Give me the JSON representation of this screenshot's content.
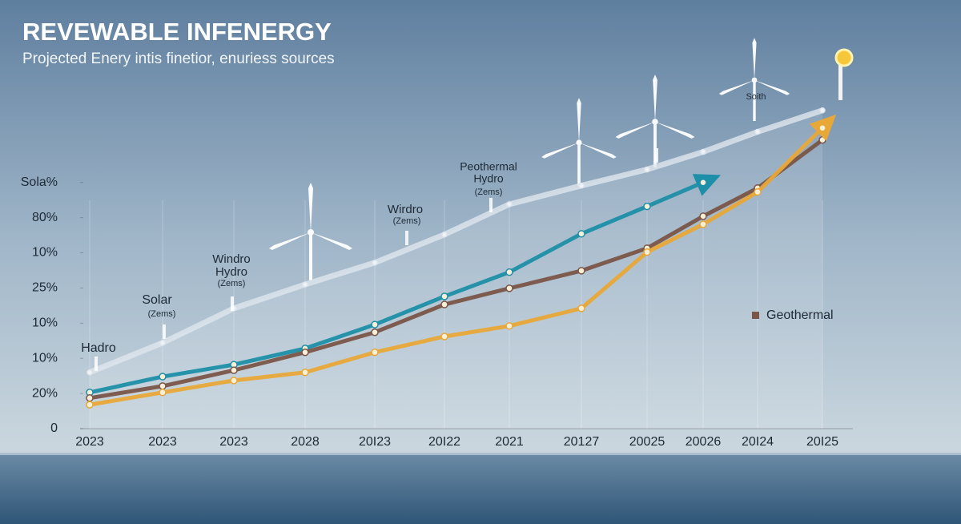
{
  "chart_data": {
    "type": "line",
    "title": "REVEWABLE INFENERGY",
    "subtitle": "Projected Enery intis finetior, enuriess sources",
    "categories": [
      "2023",
      "2023",
      "2023",
      "2028",
      "20I23",
      "20I22",
      "2021",
      "20127",
      "20025",
      "20026",
      "20I24",
      "20I25"
    ],
    "series": [
      {
        "color": "#dfe6ee",
        "values": [
          1.6,
          2.44,
          3.42,
          4.1,
          4.72,
          5.52,
          6.38,
          6.91,
          7.37,
          7.87,
          8.44,
          9.05
        ]
      },
      {
        "color": "#1e8fa8",
        "values": [
          1.03,
          1.48,
          1.82,
          2.28,
          2.96,
          3.76,
          4.45,
          5.54,
          6.32,
          7.0,
          null,
          null
        ]
      },
      {
        "name": "Geothermal",
        "color": "#7a5548",
        "values": [
          0.87,
          1.21,
          1.66,
          2.17,
          2.74,
          3.53,
          3.99,
          4.49,
          5.13,
          6.04,
          6.84,
          8.21
        ]
      },
      {
        "color": "#e8a838",
        "values": [
          0.68,
          1.03,
          1.37,
          1.6,
          2.17,
          2.62,
          2.92,
          3.42,
          5.02,
          5.81,
          6.73,
          8.55
        ]
      }
    ],
    "ylim": [
      0,
      9.5
    ],
    "yticks": [
      0,
      {
        "value": 1,
        "label": "20%"
      },
      {
        "value": 2,
        "label": "10%"
      },
      {
        "value": 3,
        "label": "10%"
      },
      {
        "value": 4,
        "label": "25%"
      },
      {
        "value": 5,
        "label": "10%"
      },
      {
        "value": 6,
        "label": "80%"
      },
      {
        "value": 7,
        "label": "Sola%"
      }
    ],
    "annotations": [
      "Hadro",
      "Solar",
      "(Zems)",
      "Windro",
      "Hydro",
      "(Zems)",
      "Wirdro",
      "(Zems)",
      "Peothermal",
      "Hydro",
      "(Zems)",
      "Soith"
    ]
  }
}
